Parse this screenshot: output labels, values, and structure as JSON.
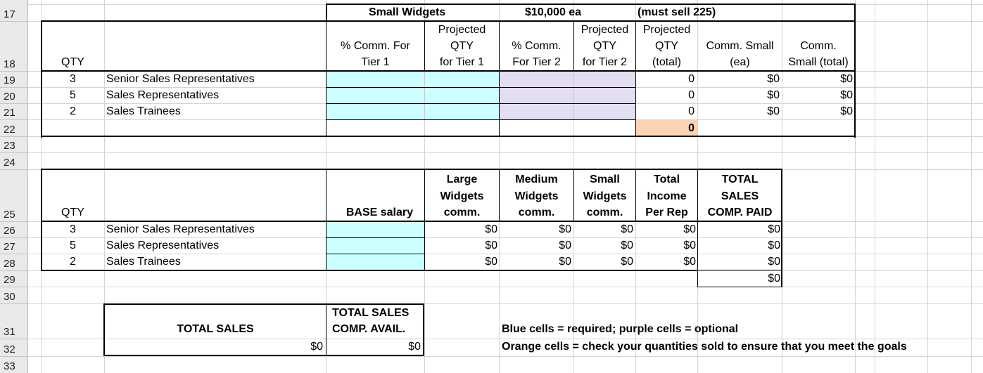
{
  "row_numbers": [
    "17",
    "18",
    "19",
    "20",
    "21",
    "22",
    "23",
    "24",
    "25",
    "26",
    "27",
    "28",
    "29",
    "30",
    "31",
    "32",
    "33"
  ],
  "top_table": {
    "banner": {
      "title": "Small Widgets",
      "price": "$10,000 ea",
      "goal": "(must sell 225)"
    },
    "headers": {
      "qty": "QTY",
      "comm_tier1": [
        "% Comm. For",
        "Tier 1"
      ],
      "proj_tier1": [
        "Projected",
        "QTY",
        "for Tier 1"
      ],
      "comm_tier2": [
        "% Comm.",
        "For Tier 2"
      ],
      "proj_tier2": [
        "Projected",
        "QTY",
        "for Tier 2"
      ],
      "proj_total": [
        "Projected",
        "QTY",
        "(total)"
      ],
      "comm_small_ea": [
        "Comm. Small",
        "(ea)"
      ],
      "comm_small_total": [
        "Comm.",
        "Small (total)"
      ]
    },
    "rows": [
      {
        "qty": "3",
        "role": "Senior Sales Representatives",
        "proj_total": "0",
        "comm_ea": "$0",
        "comm_total": "$0"
      },
      {
        "qty": "5",
        "role": "Sales Representatives",
        "proj_total": "0",
        "comm_ea": "$0",
        "comm_total": "$0"
      },
      {
        "qty": "2",
        "role": "Sales Trainees",
        "proj_total": "0",
        "comm_ea": "$0",
        "comm_total": "$0"
      }
    ],
    "total_qty": "0"
  },
  "bottom_table": {
    "headers": {
      "qty": "QTY",
      "base_salary": "BASE salary",
      "large": [
        "Large",
        "Widgets",
        "comm."
      ],
      "medium": [
        "Medium",
        "Widgets",
        "comm."
      ],
      "small": [
        "Small",
        "Widgets",
        "comm."
      ],
      "total_income": [
        "Total",
        "Income",
        "Per Rep"
      ],
      "total_paid": [
        "TOTAL",
        "SALES",
        "COMP. PAID"
      ]
    },
    "rows": [
      {
        "qty": "3",
        "role": "Senior Sales Representatives",
        "large": "$0",
        "medium": "$0",
        "small": "$0",
        "income": "$0",
        "paid": "$0"
      },
      {
        "qty": "5",
        "role": "Sales Representatives",
        "large": "$0",
        "medium": "$0",
        "small": "$0",
        "income": "$0",
        "paid": "$0"
      },
      {
        "qty": "2",
        "role": "Sales Trainees",
        "large": "$0",
        "medium": "$0",
        "small": "$0",
        "income": "$0",
        "paid": "$0"
      }
    ],
    "grand_total": "$0"
  },
  "summary": {
    "total_sales_label": "TOTAL SALES",
    "total_sales_value": "$0",
    "comp_avail_label": [
      "TOTAL SALES",
      "COMP. AVAIL."
    ],
    "comp_avail_value": "$0"
  },
  "notes": {
    "line1": "Blue cells = required; purple cells = optional",
    "line2": "Orange cells = check your quantities sold to ensure that you meet the goals"
  },
  "colors": {
    "required_blue": "#ccffff",
    "optional_purple": "#e3def0",
    "check_orange": "#fcd4b4"
  }
}
